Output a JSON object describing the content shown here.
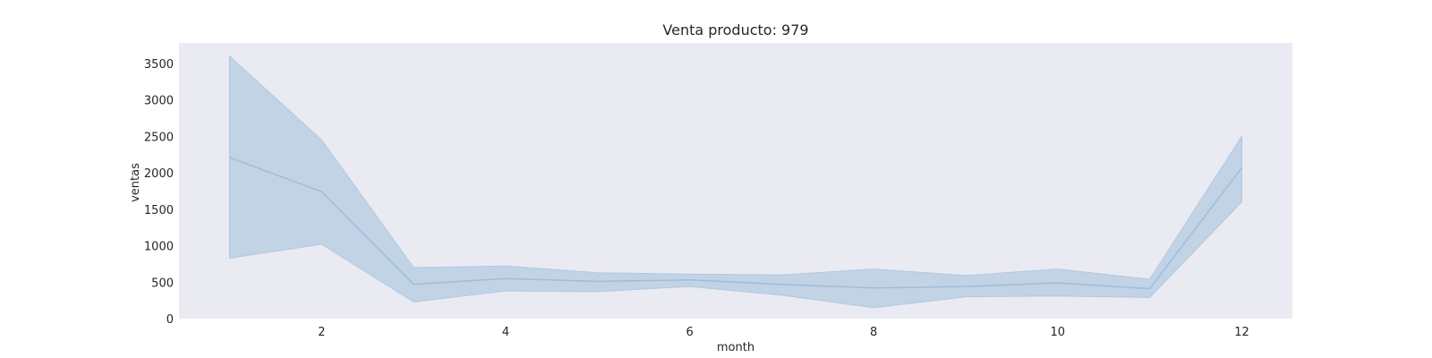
{
  "chart_data": {
    "type": "line",
    "title": "Venta producto: 979",
    "xlabel": "month",
    "ylabel": "ventas",
    "x": [
      1,
      2,
      3,
      4,
      5,
      6,
      7,
      8,
      9,
      10,
      11,
      12
    ],
    "series": [
      {
        "name": "ventas",
        "values": [
          2210,
          1740,
          470,
          550,
          510,
          530,
          470,
          420,
          440,
          490,
          410,
          2070
        ],
        "ci_lower": [
          830,
          1020,
          230,
          380,
          370,
          440,
          320,
          150,
          300,
          310,
          290,
          1600
        ],
        "ci_upper": [
          3600,
          2450,
          700,
          720,
          630,
          610,
          600,
          680,
          590,
          680,
          540,
          2500
        ]
      }
    ],
    "xlim": [
      0.45,
      12.55
    ],
    "ylim": [
      0,
      3780
    ],
    "xticks": [
      2,
      4,
      6,
      8,
      10,
      12
    ],
    "yticks": [
      0,
      500,
      1000,
      1500,
      2000,
      2500,
      3000,
      3500
    ],
    "grid": false,
    "colors": {
      "line": "#9dbedb",
      "band": "#b0c9e1",
      "plot_bg": "#eaeaf2"
    }
  }
}
